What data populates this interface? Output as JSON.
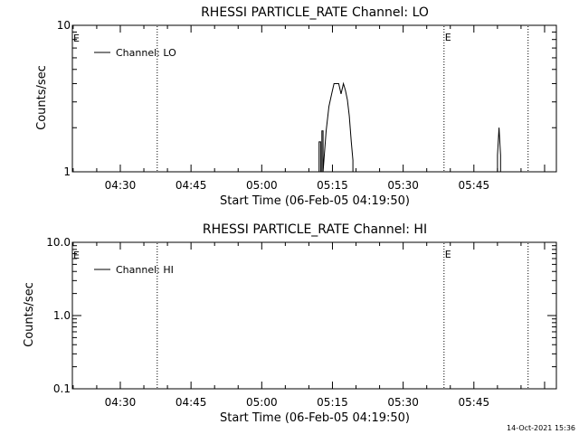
{
  "chart_data": [
    {
      "type": "line",
      "title": "RHESSI PARTICLE_RATE Channel: LO",
      "xlabel": "Start Time (06-Feb-05 04:19:50)",
      "ylabel": "Counts/sec",
      "y_scale": "log",
      "ylim": [
        1,
        10
      ],
      "y_ticks": [
        {
          "value": 1,
          "label": "1"
        },
        {
          "value": 10,
          "label": "10"
        }
      ],
      "xlim": [
        "04:19:50",
        "06:02:30"
      ],
      "x_ticks": [
        "04:30",
        "04:45",
        "05:00",
        "05:15",
        "05:30",
        "05:45"
      ],
      "legend": {
        "position": "top-left",
        "entries": [
          "Channel: LO"
        ]
      },
      "markers": [
        {
          "x": "04:37:50",
          "label": ""
        },
        {
          "x": "05:38:40",
          "label": "E"
        },
        {
          "x": "05:56:30",
          "label": ""
        }
      ],
      "edge_label": "E",
      "series": [
        {
          "name": "Channel: LO",
          "x": [
            "04:19:50",
            "05:12:10",
            "05:12:10",
            "05:12:30",
            "05:12:30",
            "05:12:45",
            "05:12:45",
            "05:13:00",
            "05:13:00",
            "05:13:40",
            "05:14:15",
            "05:14:50",
            "05:15:20",
            "05:15:50",
            "05:16:20",
            "05:16:50",
            "05:17:20",
            "05:17:45",
            "05:18:10",
            "05:18:35",
            "05:19:00",
            "05:19:20",
            "05:19:20",
            "05:50:00",
            "05:50:00",
            "05:50:20",
            "05:50:40",
            "05:50:40",
            "06:02:30"
          ],
          "y": [
            1,
            1,
            1.6,
            1.6,
            1,
            1,
            1.9,
            1.9,
            1,
            1.9,
            2.8,
            3.4,
            4,
            4,
            4,
            3.4,
            4,
            3.6,
            3.1,
            2.4,
            1.6,
            1.2,
            1,
            1,
            1.3,
            2,
            1.3,
            1,
            1
          ]
        }
      ]
    },
    {
      "type": "line",
      "title": "RHESSI PARTICLE_RATE Channel: HI",
      "xlabel": "Start Time (06-Feb-05 04:19:50)",
      "ylabel": "Counts/sec",
      "y_scale": "log",
      "ylim": [
        0.1,
        10
      ],
      "y_ticks": [
        {
          "value": 0.1,
          "label": "0.1"
        },
        {
          "value": 1,
          "label": "1.0"
        },
        {
          "value": 10,
          "label": "10.0"
        }
      ],
      "xlim": [
        "04:19:50",
        "06:02:30"
      ],
      "x_ticks": [
        "04:30",
        "04:45",
        "05:00",
        "05:15",
        "05:30",
        "05:45"
      ],
      "legend": {
        "position": "top-left",
        "entries": [
          "Channel: HI"
        ]
      },
      "markers": [
        {
          "x": "04:37:50",
          "label": ""
        },
        {
          "x": "05:38:40",
          "label": "E"
        },
        {
          "x": "05:56:30",
          "label": ""
        }
      ],
      "edge_label": "E",
      "series": [
        {
          "name": "Channel: HI",
          "x": [],
          "y": []
        }
      ]
    }
  ],
  "footer": {
    "timestamp": "14-Oct-2021 15:36"
  }
}
